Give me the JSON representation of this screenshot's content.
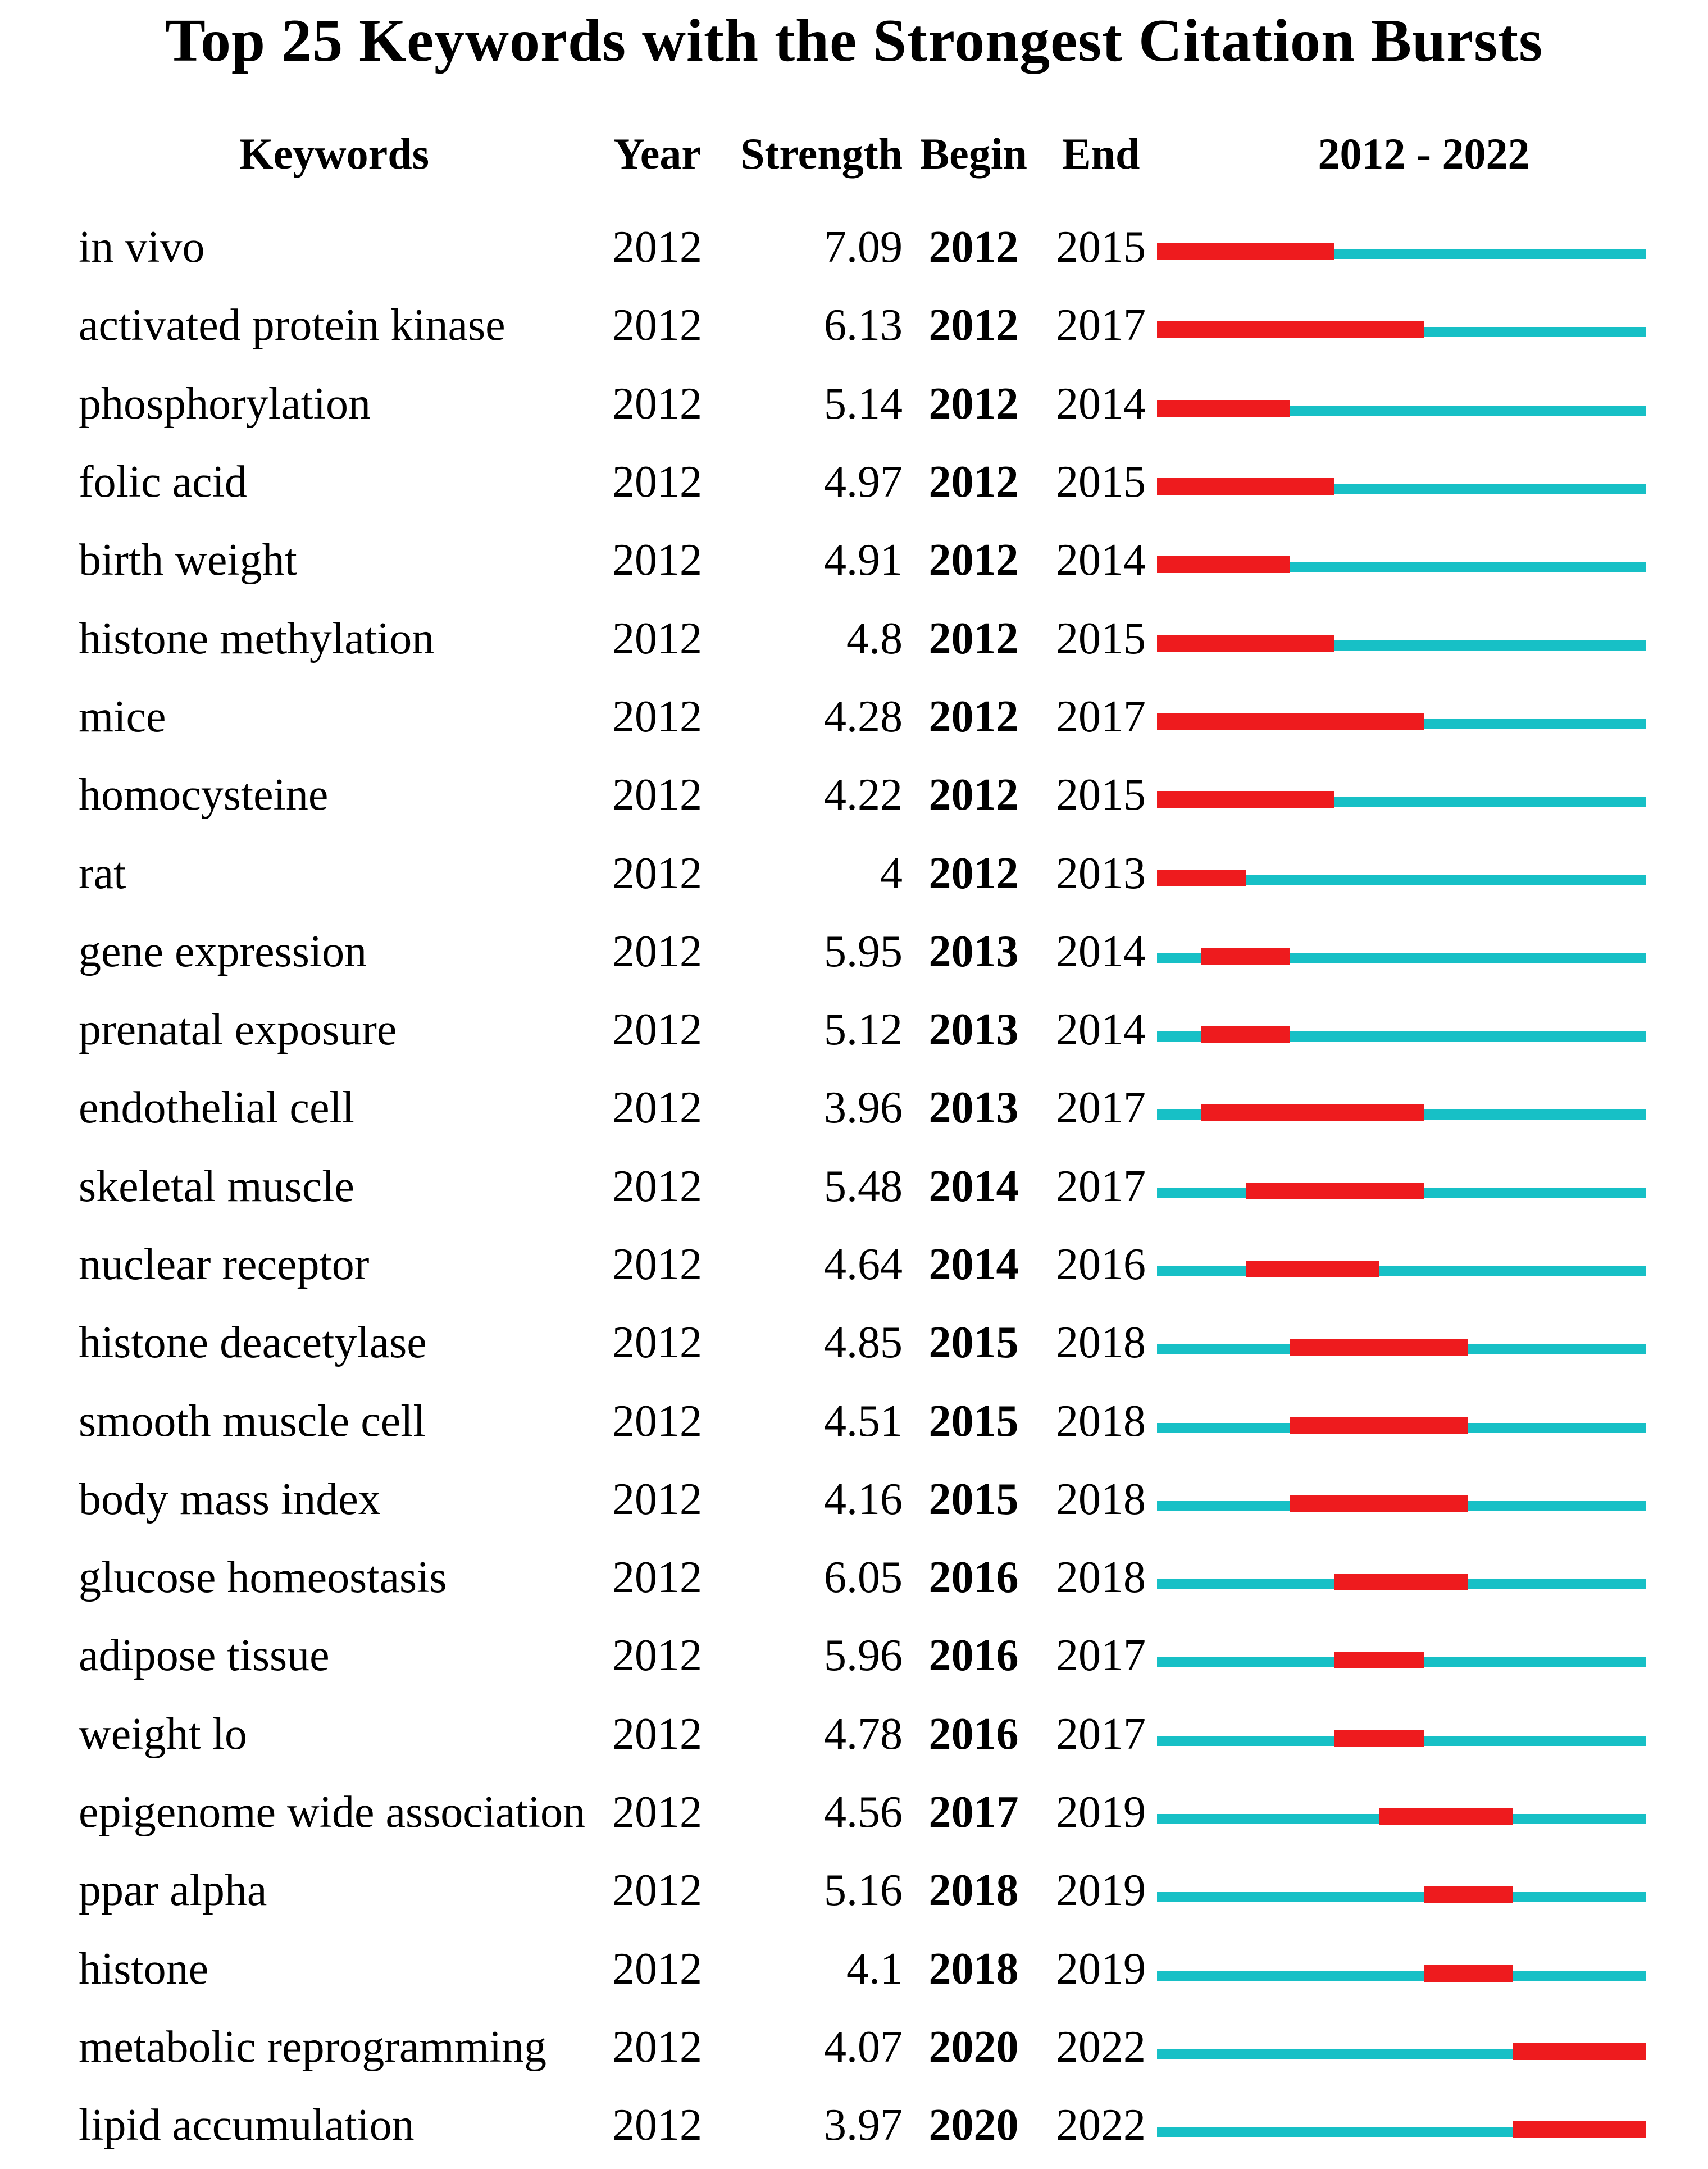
{
  "colors": {
    "burst_red": "#ee1b1e",
    "base_cyan": "#17c0c6",
    "text": "#000000",
    "background": "#ffffff"
  },
  "chart_data": {
    "type": "table",
    "title": "Top 25 Keywords with the Strongest Citation Bursts",
    "columns": [
      "Keywords",
      "Year",
      "Strength",
      "Begin",
      "End",
      "2012 - 2022"
    ],
    "timeline": {
      "start": 2012,
      "end": 2022,
      "header_label": "2012 - 2022"
    },
    "bar_encoding": {
      "burst_segment": "red",
      "full_range_track": "cyan"
    },
    "rows": [
      {
        "keyword": "in vivo",
        "year": "2012",
        "strength": "7.09",
        "begin": 2012,
        "end": 2015
      },
      {
        "keyword": "activated protein kinase",
        "year": "2012",
        "strength": "6.13",
        "begin": 2012,
        "end": 2017
      },
      {
        "keyword": "phosphorylation",
        "year": "2012",
        "strength": "5.14",
        "begin": 2012,
        "end": 2014
      },
      {
        "keyword": "folic acid",
        "year": "2012",
        "strength": "4.97",
        "begin": 2012,
        "end": 2015
      },
      {
        "keyword": "birth weight",
        "year": "2012",
        "strength": "4.91",
        "begin": 2012,
        "end": 2014
      },
      {
        "keyword": "histone methylation",
        "year": "2012",
        "strength": "4.8",
        "begin": 2012,
        "end": 2015
      },
      {
        "keyword": "mice",
        "year": "2012",
        "strength": "4.28",
        "begin": 2012,
        "end": 2017
      },
      {
        "keyword": "homocysteine",
        "year": "2012",
        "strength": "4.22",
        "begin": 2012,
        "end": 2015
      },
      {
        "keyword": "rat",
        "year": "2012",
        "strength": "4",
        "begin": 2012,
        "end": 2013
      },
      {
        "keyword": "gene expression",
        "year": "2012",
        "strength": "5.95",
        "begin": 2013,
        "end": 2014
      },
      {
        "keyword": "prenatal exposure",
        "year": "2012",
        "strength": "5.12",
        "begin": 2013,
        "end": 2014
      },
      {
        "keyword": "endothelial cell",
        "year": "2012",
        "strength": "3.96",
        "begin": 2013,
        "end": 2017
      },
      {
        "keyword": "skeletal muscle",
        "year": "2012",
        "strength": "5.48",
        "begin": 2014,
        "end": 2017
      },
      {
        "keyword": "nuclear receptor",
        "year": "2012",
        "strength": "4.64",
        "begin": 2014,
        "end": 2016
      },
      {
        "keyword": "histone deacetylase",
        "year": "2012",
        "strength": "4.85",
        "begin": 2015,
        "end": 2018
      },
      {
        "keyword": "smooth muscle cell",
        "year": "2012",
        "strength": "4.51",
        "begin": 2015,
        "end": 2018
      },
      {
        "keyword": "body mass index",
        "year": "2012",
        "strength": "4.16",
        "begin": 2015,
        "end": 2018
      },
      {
        "keyword": "glucose homeostasis",
        "year": "2012",
        "strength": "6.05",
        "begin": 2016,
        "end": 2018
      },
      {
        "keyword": "adipose tissue",
        "year": "2012",
        "strength": "5.96",
        "begin": 2016,
        "end": 2017
      },
      {
        "keyword": "weight lo",
        "year": "2012",
        "strength": "4.78",
        "begin": 2016,
        "end": 2017
      },
      {
        "keyword": "epigenome wide association",
        "year": "2012",
        "strength": "4.56",
        "begin": 2017,
        "end": 2019
      },
      {
        "keyword": "ppar alpha",
        "year": "2012",
        "strength": "5.16",
        "begin": 2018,
        "end": 2019
      },
      {
        "keyword": "histone",
        "year": "2012",
        "strength": "4.1",
        "begin": 2018,
        "end": 2019
      },
      {
        "keyword": "metabolic reprogramming",
        "year": "2012",
        "strength": "4.07",
        "begin": 2020,
        "end": 2022
      },
      {
        "keyword": "lipid accumulation",
        "year": "2012",
        "strength": "3.97",
        "begin": 2020,
        "end": 2022
      }
    ]
  }
}
